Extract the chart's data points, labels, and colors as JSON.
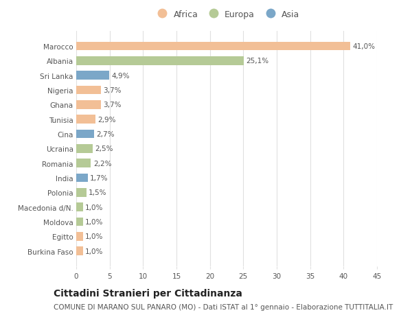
{
  "categories": [
    "Burkina Faso",
    "Egitto",
    "Moldova",
    "Macedonia d/N.",
    "Polonia",
    "India",
    "Romania",
    "Ucraina",
    "Cina",
    "Tunisia",
    "Ghana",
    "Nigeria",
    "Sri Lanka",
    "Albania",
    "Marocco"
  ],
  "values": [
    1.0,
    1.0,
    1.0,
    1.0,
    1.5,
    1.7,
    2.2,
    2.5,
    2.7,
    2.9,
    3.7,
    3.7,
    4.9,
    25.1,
    41.0
  ],
  "labels": [
    "1,0%",
    "1,0%",
    "1,0%",
    "1,0%",
    "1,5%",
    "1,7%",
    "2,2%",
    "2,5%",
    "2,7%",
    "2,9%",
    "3,7%",
    "3,7%",
    "4,9%",
    "25,1%",
    "41,0%"
  ],
  "continents": [
    "Africa",
    "Africa",
    "Europa",
    "Europa",
    "Europa",
    "Asia",
    "Europa",
    "Europa",
    "Asia",
    "Africa",
    "Africa",
    "Africa",
    "Asia",
    "Europa",
    "Africa"
  ],
  "continent_colors": {
    "Africa": "#F2BF96",
    "Europa": "#B5CA96",
    "Asia": "#7BA7C8"
  },
  "legend_labels": [
    "Africa",
    "Europa",
    "Asia"
  ],
  "legend_colors": [
    "#F2BF96",
    "#B5CA96",
    "#7BA7C8"
  ],
  "xlim": [
    0,
    45
  ],
  "xticks": [
    0,
    5,
    10,
    15,
    20,
    25,
    30,
    35,
    40,
    45
  ],
  "title": "Cittadini Stranieri per Cittadinanza",
  "subtitle": "COMUNE DI MARANO SUL PANARO (MO) - Dati ISTAT al 1° gennaio - Elaborazione TUTTITALIA.IT",
  "background_color": "#ffffff",
  "grid_color": "#e0e0e0",
  "bar_height": 0.6,
  "label_fontsize": 7.5,
  "tick_fontsize": 7.5,
  "title_fontsize": 10,
  "subtitle_fontsize": 7.5,
  "legend_fontsize": 9
}
